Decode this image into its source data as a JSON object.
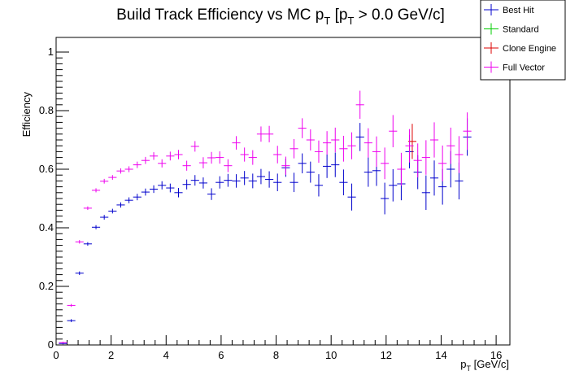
{
  "chart_data": {
    "type": "scatter",
    "title": "Build Track Efficiency vs MC pT [pT > 0.0 GeV/c]",
    "title_parts": {
      "main": "Build Track Efficiency vs MC p",
      "sub1": "T",
      "mid": " [p",
      "sub2": "T",
      "tail": " > 0.0 GeV/c]"
    },
    "xlabel_parts": {
      "main": "p",
      "sub": "T",
      "tail": " [GeV/c]"
    },
    "ylabel": "Efficiency",
    "xlim": [
      0,
      16.5
    ],
    "ylim": [
      0,
      1.05
    ],
    "x_ticks": [
      "0",
      "2",
      "4",
      "6",
      "8",
      "10",
      "12",
      "14",
      "16"
    ],
    "y_ticks": [
      "0",
      "0.2",
      "0.4",
      "0.6",
      "0.8",
      "1"
    ],
    "legend_position": "top-right",
    "series": [
      {
        "name": "Best Hit",
        "color": "#0000cc",
        "points": [
          [
            0.25,
            0.005,
            0.003
          ],
          [
            0.55,
            0.083,
            0.005
          ],
          [
            0.85,
            0.245,
            0.006
          ],
          [
            1.15,
            0.345,
            0.006
          ],
          [
            1.45,
            0.402,
            0.007
          ],
          [
            1.75,
            0.436,
            0.008
          ],
          [
            2.05,
            0.457,
            0.008
          ],
          [
            2.35,
            0.478,
            0.009
          ],
          [
            2.65,
            0.494,
            0.01
          ],
          [
            2.95,
            0.505,
            0.011
          ],
          [
            3.25,
            0.522,
            0.012
          ],
          [
            3.55,
            0.532,
            0.013
          ],
          [
            3.85,
            0.545,
            0.014
          ],
          [
            4.15,
            0.536,
            0.015
          ],
          [
            4.45,
            0.52,
            0.016
          ],
          [
            4.75,
            0.548,
            0.017
          ],
          [
            5.05,
            0.562,
            0.018
          ],
          [
            5.35,
            0.553,
            0.019
          ],
          [
            5.65,
            0.515,
            0.02
          ],
          [
            5.95,
            0.555,
            0.021
          ],
          [
            6.25,
            0.562,
            0.022
          ],
          [
            6.55,
            0.56,
            0.023
          ],
          [
            6.85,
            0.57,
            0.024
          ],
          [
            7.15,
            0.56,
            0.025
          ],
          [
            7.45,
            0.575,
            0.026
          ],
          [
            7.75,
            0.565,
            0.028
          ],
          [
            8.05,
            0.555,
            0.03
          ],
          [
            8.35,
            0.605,
            0.031
          ],
          [
            8.65,
            0.555,
            0.033
          ],
          [
            8.95,
            0.62,
            0.034
          ],
          [
            9.25,
            0.59,
            0.036
          ],
          [
            9.55,
            0.545,
            0.038
          ],
          [
            9.85,
            0.61,
            0.04
          ],
          [
            10.15,
            0.615,
            0.042
          ],
          [
            10.45,
            0.555,
            0.044
          ],
          [
            10.75,
            0.505,
            0.046
          ],
          [
            11.05,
            0.71,
            0.048
          ],
          [
            11.35,
            0.59,
            0.05
          ],
          [
            11.65,
            0.595,
            0.052
          ],
          [
            11.95,
            0.5,
            0.054
          ],
          [
            12.25,
            0.545,
            0.055
          ],
          [
            12.55,
            0.55,
            0.056
          ],
          [
            12.85,
            0.66,
            0.057
          ],
          [
            13.15,
            0.59,
            0.058
          ],
          [
            13.45,
            0.52,
            0.059
          ],
          [
            13.75,
            0.57,
            0.06
          ],
          [
            14.05,
            0.54,
            0.061
          ],
          [
            14.35,
            0.6,
            0.062
          ],
          [
            14.65,
            0.56,
            0.063
          ],
          [
            14.95,
            0.71,
            0.064
          ]
        ]
      },
      {
        "name": "Standard",
        "color": "#00cc00",
        "points": []
      },
      {
        "name": "Clone Engine",
        "color": "#dd0000",
        "points": [
          [
            12.95,
            0.695,
            0.06
          ]
        ]
      },
      {
        "name": "Full Vector",
        "color": "#ee00ee",
        "points": [
          [
            0.25,
            0.008,
            0.003
          ],
          [
            0.55,
            0.135,
            0.005
          ],
          [
            0.85,
            0.352,
            0.006
          ],
          [
            1.15,
            0.467,
            0.006
          ],
          [
            1.45,
            0.528,
            0.007
          ],
          [
            1.75,
            0.559,
            0.008
          ],
          [
            2.05,
            0.572,
            0.008
          ],
          [
            2.35,
            0.594,
            0.009
          ],
          [
            2.65,
            0.6,
            0.01
          ],
          [
            2.95,
            0.615,
            0.011
          ],
          [
            3.25,
            0.63,
            0.012
          ],
          [
            3.55,
            0.645,
            0.013
          ],
          [
            3.85,
            0.62,
            0.014
          ],
          [
            4.15,
            0.645,
            0.015
          ],
          [
            4.45,
            0.65,
            0.016
          ],
          [
            4.75,
            0.612,
            0.017
          ],
          [
            5.05,
            0.678,
            0.018
          ],
          [
            5.35,
            0.622,
            0.019
          ],
          [
            5.65,
            0.639,
            0.02
          ],
          [
            5.95,
            0.64,
            0.021
          ],
          [
            6.25,
            0.612,
            0.022
          ],
          [
            6.55,
            0.69,
            0.023
          ],
          [
            6.85,
            0.65,
            0.024
          ],
          [
            7.15,
            0.64,
            0.025
          ],
          [
            7.45,
            0.72,
            0.026
          ],
          [
            7.75,
            0.72,
            0.028
          ],
          [
            8.05,
            0.65,
            0.03
          ],
          [
            8.35,
            0.612,
            0.031
          ],
          [
            8.65,
            0.67,
            0.033
          ],
          [
            8.95,
            0.74,
            0.034
          ],
          [
            9.25,
            0.7,
            0.036
          ],
          [
            9.55,
            0.66,
            0.038
          ],
          [
            9.85,
            0.69,
            0.04
          ],
          [
            10.15,
            0.7,
            0.042
          ],
          [
            10.45,
            0.67,
            0.044
          ],
          [
            10.75,
            0.68,
            0.046
          ],
          [
            11.05,
            0.82,
            0.048
          ],
          [
            11.35,
            0.69,
            0.05
          ],
          [
            11.65,
            0.66,
            0.052
          ],
          [
            11.95,
            0.62,
            0.054
          ],
          [
            12.25,
            0.73,
            0.055
          ],
          [
            12.55,
            0.6,
            0.056
          ],
          [
            12.85,
            0.68,
            0.057
          ],
          [
            13.15,
            0.63,
            0.058
          ],
          [
            13.45,
            0.64,
            0.059
          ],
          [
            13.75,
            0.7,
            0.06
          ],
          [
            14.05,
            0.62,
            0.061
          ],
          [
            14.35,
            0.68,
            0.062
          ],
          [
            14.65,
            0.65,
            0.063
          ],
          [
            14.95,
            0.73,
            0.064
          ]
        ]
      }
    ]
  }
}
